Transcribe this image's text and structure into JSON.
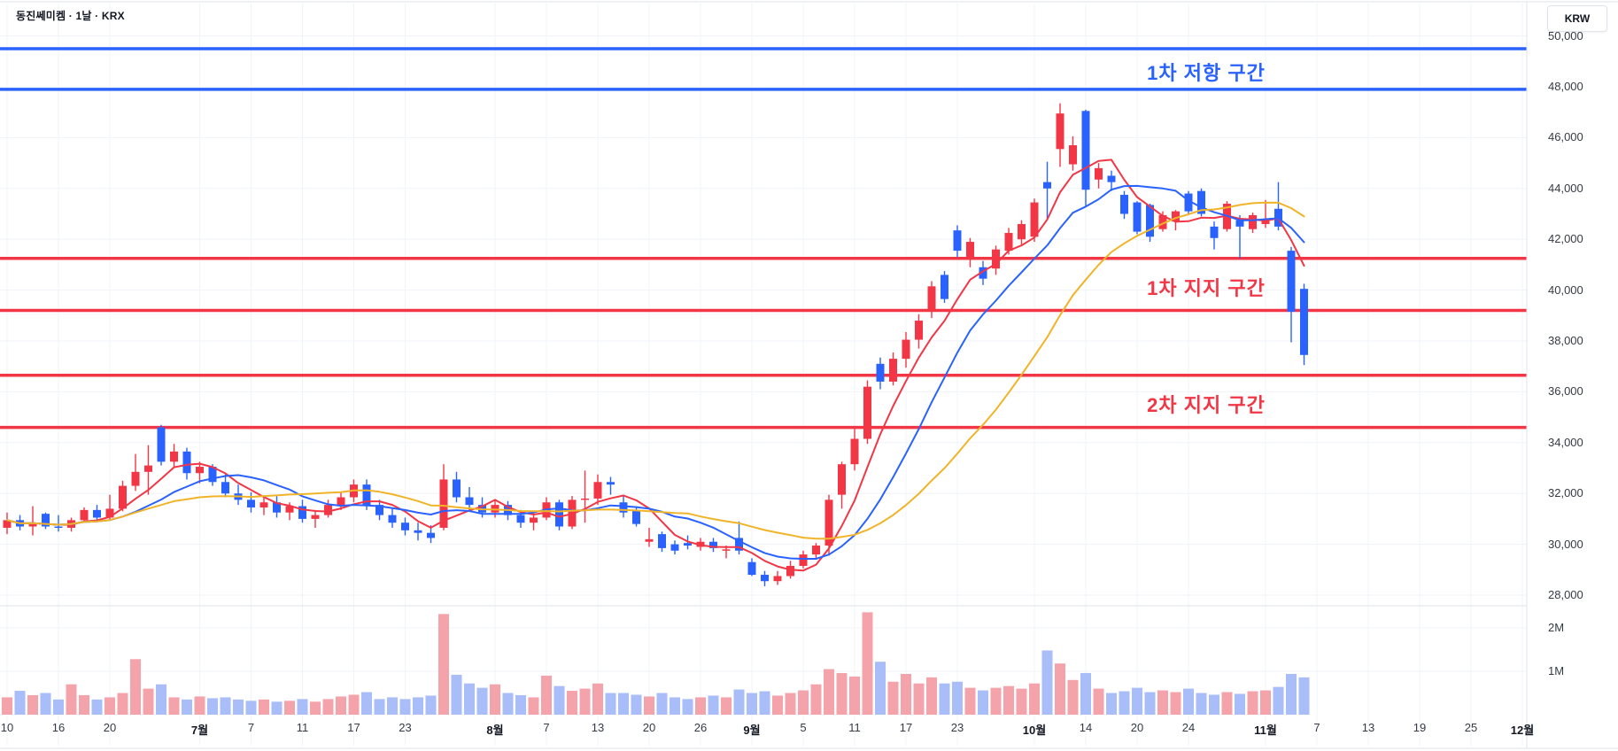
{
  "header": {
    "title": "동진쎄미켐 · 1날 · KRX"
  },
  "currency_button": {
    "label": "KRW"
  },
  "annotations": {
    "resistance": "1차 저항 구간",
    "support1": "1차 지지 구간",
    "support2": "2차 지지 구간"
  },
  "colors": {
    "up": "#f23645",
    "down": "#2962ff",
    "vol_up": "#f5a3ab",
    "vol_down": "#a9bdf8",
    "ma5": "#f23645",
    "ma10": "#2962ff",
    "ma20": "#f0b429",
    "resistance_line": "#2962ff",
    "support_line": "#f23645",
    "grid": "#f0f3fa",
    "border": "#e0e3eb",
    "axis_text": "#363a45"
  },
  "chart_data": {
    "type": "candlestick",
    "title": "동진쎄미켐 · 1날 · KRX",
    "ylabel": "KRW",
    "price_axis_ticks": [
      50000,
      48000,
      46000,
      44000,
      42000,
      40000,
      38000,
      36000,
      34000,
      32000,
      30000,
      28000
    ],
    "volume_axis_ticks": [
      {
        "label": "2M",
        "value": 2
      },
      {
        "label": "1M",
        "value": 1
      }
    ],
    "resistance_levels": [
      49500,
      47900
    ],
    "support_levels": [
      41250,
      39200,
      36650,
      34600
    ],
    "moving_averages": [
      {
        "name": "MA5",
        "period": 5,
        "color": "#f23645"
      },
      {
        "name": "MA10",
        "period": 10,
        "color": "#2962ff"
      },
      {
        "name": "MA20",
        "period": 20,
        "color": "#f0b429"
      }
    ],
    "time_ticks": [
      {
        "i": 0,
        "label": "10"
      },
      {
        "i": 4,
        "label": "16"
      },
      {
        "i": 8,
        "label": "20"
      },
      {
        "i": 15,
        "label": "7월"
      },
      {
        "i": 19,
        "label": "7"
      },
      {
        "i": 23,
        "label": "11"
      },
      {
        "i": 27,
        "label": "17"
      },
      {
        "i": 31,
        "label": "23"
      },
      {
        "i": 38,
        "label": "8월"
      },
      {
        "i": 42,
        "label": "7"
      },
      {
        "i": 46,
        "label": "13"
      },
      {
        "i": 50,
        "label": "20"
      },
      {
        "i": 54,
        "label": "26"
      },
      {
        "i": 58,
        "label": "9월"
      },
      {
        "i": 62,
        "label": "5"
      },
      {
        "i": 66,
        "label": "11"
      },
      {
        "i": 70,
        "label": "17"
      },
      {
        "i": 74,
        "label": "23"
      },
      {
        "i": 80,
        "label": "10월"
      },
      {
        "i": 84,
        "label": "14"
      },
      {
        "i": 88,
        "label": "20"
      },
      {
        "i": 92,
        "label": "24"
      },
      {
        "i": 98,
        "label": "11월"
      },
      {
        "i": 102,
        "label": "7"
      },
      {
        "i": 106,
        "label": "13"
      },
      {
        "i": 110,
        "label": "19"
      },
      {
        "i": 114,
        "label": "25"
      },
      {
        "i": 118,
        "label": "12월"
      }
    ],
    "candles_format": [
      "date",
      "open",
      "high",
      "low",
      "close",
      "volume_millions"
    ],
    "candles": [
      [
        "06-10",
        30650,
        31250,
        30400,
        30950,
        0.4
      ],
      [
        "06-11",
        30950,
        31150,
        30550,
        30700,
        0.55
      ],
      [
        "06-12",
        30700,
        31500,
        30350,
        30850,
        0.45
      ],
      [
        "06-13",
        31200,
        31250,
        30600,
        30700,
        0.5
      ],
      [
        "06-16",
        30700,
        31150,
        30500,
        30650,
        0.35
      ],
      [
        "06-17",
        30650,
        31050,
        30500,
        30950,
        0.7
      ],
      [
        "06-18",
        30950,
        31450,
        30850,
        31350,
        0.45
      ],
      [
        "06-19",
        31350,
        31550,
        30950,
        31050,
        0.35
      ],
      [
        "06-20",
        31050,
        31950,
        30950,
        31400,
        0.4
      ],
      [
        "06-23",
        31400,
        32500,
        31300,
        32300,
        0.5
      ],
      [
        "06-24",
        32300,
        33550,
        32100,
        32850,
        1.28
      ],
      [
        "06-25",
        32850,
        33900,
        31950,
        33100,
        0.6
      ],
      [
        "06-26",
        34600,
        34700,
        33100,
        33250,
        0.7
      ],
      [
        "06-27",
        33250,
        33950,
        33050,
        33650,
        0.4
      ],
      [
        "06-30",
        33650,
        33800,
        32550,
        32800,
        0.35
      ],
      [
        "07-01",
        32800,
        33250,
        32400,
        33050,
        0.42
      ],
      [
        "07-02",
        33050,
        33150,
        32300,
        32450,
        0.38
      ],
      [
        "07-03",
        32450,
        32750,
        31850,
        32000,
        0.4
      ],
      [
        "07-04",
        32000,
        32350,
        31550,
        31750,
        0.35
      ],
      [
        "07-07",
        31750,
        32050,
        31250,
        31450,
        0.32
      ],
      [
        "07-08",
        31450,
        31850,
        31150,
        31650,
        0.35
      ],
      [
        "07-09",
        31650,
        31900,
        31050,
        31250,
        0.3
      ],
      [
        "07-10",
        31250,
        31650,
        30950,
        31500,
        0.32
      ],
      [
        "07-11",
        31500,
        31750,
        30850,
        31000,
        0.36
      ],
      [
        "07-14",
        31000,
        31350,
        30650,
        31150,
        0.3
      ],
      [
        "07-15",
        31150,
        31750,
        31050,
        31550,
        0.36
      ],
      [
        "07-16",
        31550,
        32050,
        31350,
        31850,
        0.42
      ],
      [
        "07-17",
        31850,
        32550,
        31650,
        32350,
        0.46
      ],
      [
        "07-18",
        32350,
        32550,
        31350,
        31550,
        0.52
      ],
      [
        "07-21",
        31550,
        31750,
        30950,
        31150,
        0.36
      ],
      [
        "07-22",
        31150,
        31450,
        30650,
        30850,
        0.4
      ],
      [
        "07-23",
        30850,
        31050,
        30350,
        30550,
        0.36
      ],
      [
        "07-24",
        30550,
        30850,
        30150,
        30450,
        0.4
      ],
      [
        "07-25",
        30450,
        30750,
        30050,
        30250,
        0.44
      ],
      [
        "07-28",
        30650,
        33150,
        30550,
        32550,
        2.32
      ],
      [
        "07-29",
        32550,
        32850,
        31650,
        31850,
        0.92
      ],
      [
        "07-30",
        31850,
        32250,
        31350,
        31550,
        0.72
      ],
      [
        "07-31",
        31550,
        31850,
        31050,
        31250,
        0.62
      ],
      [
        "08-01",
        31250,
        31750,
        31050,
        31550,
        0.7
      ],
      [
        "08-04",
        31550,
        31700,
        30950,
        31150,
        0.5
      ],
      [
        "08-05",
        31150,
        31350,
        30650,
        30850,
        0.45
      ],
      [
        "08-06",
        30850,
        31250,
        30550,
        31050,
        0.4
      ],
      [
        "08-07",
        31050,
        31850,
        30950,
        31650,
        0.9
      ],
      [
        "08-08",
        31650,
        31750,
        30550,
        30700,
        0.66
      ],
      [
        "08-11",
        30700,
        31900,
        30600,
        31750,
        0.55
      ],
      [
        "08-12",
        31750,
        32900,
        30850,
        31800,
        0.6
      ],
      [
        "08-13",
        31800,
        32750,
        31550,
        32450,
        0.72
      ],
      [
        "08-14",
        32450,
        32650,
        31950,
        32350,
        0.5
      ],
      [
        "08-18",
        31650,
        31950,
        31050,
        31250,
        0.5
      ],
      [
        "08-19",
        31350,
        31450,
        30700,
        30800,
        0.46
      ],
      [
        "08-20",
        30100,
        30650,
        29900,
        30200,
        0.42
      ],
      [
        "08-21",
        30400,
        30500,
        29700,
        29850,
        0.5
      ],
      [
        "08-22",
        30000,
        30150,
        29600,
        29750,
        0.4
      ],
      [
        "08-25",
        30050,
        30350,
        29800,
        29950,
        0.36
      ],
      [
        "08-26",
        29900,
        30250,
        29750,
        30100,
        0.4
      ],
      [
        "08-27",
        30100,
        30250,
        29700,
        29850,
        0.44
      ],
      [
        "08-28",
        29750,
        29950,
        29450,
        29800,
        0.4
      ],
      [
        "08-29",
        30250,
        30900,
        29600,
        29750,
        0.58
      ],
      [
        "09-01",
        29300,
        29450,
        28750,
        28800,
        0.5
      ],
      [
        "09-02",
        28800,
        28950,
        28350,
        28550,
        0.54
      ],
      [
        "09-03",
        28550,
        28950,
        28400,
        28750,
        0.44
      ],
      [
        "09-04",
        28750,
        29350,
        28650,
        29150,
        0.5
      ],
      [
        "09-05",
        29150,
        29750,
        29050,
        29600,
        0.56
      ],
      [
        "09-08",
        29600,
        30050,
        29450,
        29950,
        0.7
      ],
      [
        "09-09",
        29950,
        31950,
        29550,
        31750,
        1.05
      ],
      [
        "09-10",
        31950,
        33250,
        31400,
        33150,
        0.96
      ],
      [
        "09-11",
        33150,
        34600,
        32900,
        34150,
        0.88
      ],
      [
        "09-12",
        34150,
        36450,
        33950,
        36200,
        2.36
      ],
      [
        "09-15",
        37100,
        37350,
        36100,
        36400,
        1.22
      ],
      [
        "09-16",
        36400,
        37550,
        36250,
        37300,
        0.76
      ],
      [
        "09-17",
        37300,
        38350,
        36950,
        38050,
        0.94
      ],
      [
        "09-18",
        38050,
        39050,
        37700,
        38800,
        0.72
      ],
      [
        "09-19",
        39200,
        40350,
        38900,
        40150,
        0.86
      ],
      [
        "09-22",
        40600,
        40750,
        39500,
        39650,
        0.72
      ],
      [
        "09-23",
        42350,
        42550,
        41300,
        41550,
        0.76
      ],
      [
        "09-24",
        41200,
        42050,
        40900,
        41900,
        0.62
      ],
      [
        "09-25",
        40900,
        41150,
        40200,
        40450,
        0.56
      ],
      [
        "09-26",
        40850,
        41750,
        40600,
        41600,
        0.62
      ],
      [
        "09-29",
        41550,
        42450,
        41400,
        42250,
        0.66
      ],
      [
        "09-30",
        42000,
        42750,
        41800,
        42600,
        0.6
      ],
      [
        "10-01",
        42100,
        43600,
        41900,
        43450,
        0.72
      ],
      [
        "10-02",
        44250,
        45050,
        42750,
        44000,
        1.48
      ],
      [
        "10-10",
        45550,
        47350,
        44850,
        46950,
        1.18
      ],
      [
        "10-13",
        44950,
        46050,
        44700,
        45700,
        0.8
      ],
      [
        "10-14",
        47050,
        47100,
        43300,
        43950,
        0.96
      ],
      [
        "10-15",
        44350,
        45000,
        44000,
        44800,
        0.6
      ],
      [
        "10-16",
        44500,
        44700,
        43900,
        44250,
        0.5
      ],
      [
        "10-17",
        43750,
        43900,
        42800,
        43000,
        0.54
      ],
      [
        "10-20",
        43450,
        43500,
        42200,
        42300,
        0.62
      ],
      [
        "10-21",
        43350,
        43400,
        41900,
        42100,
        0.52
      ],
      [
        "10-22",
        42400,
        43100,
        42300,
        42950,
        0.56
      ],
      [
        "10-23",
        42700,
        43150,
        42350,
        43100,
        0.52
      ],
      [
        "10-24",
        43800,
        43900,
        43000,
        43100,
        0.6
      ],
      [
        "10-27",
        43900,
        44000,
        42900,
        43000,
        0.5
      ],
      [
        "10-28",
        42500,
        42700,
        41600,
        42050,
        0.46
      ],
      [
        "10-29",
        42400,
        43500,
        42300,
        43400,
        0.52
      ],
      [
        "10-30",
        42750,
        42950,
        41250,
        42500,
        0.48
      ],
      [
        "10-31",
        42400,
        43050,
        42250,
        42950,
        0.54
      ],
      [
        "11-03",
        42600,
        43550,
        42450,
        42750,
        0.56
      ],
      [
        "11-04",
        43200,
        44250,
        42350,
        42500,
        0.64
      ],
      [
        "11-05",
        41550,
        41700,
        37950,
        39150,
        0.94
      ],
      [
        "11-06",
        40050,
        40250,
        37050,
        37450,
        0.86
      ]
    ]
  }
}
